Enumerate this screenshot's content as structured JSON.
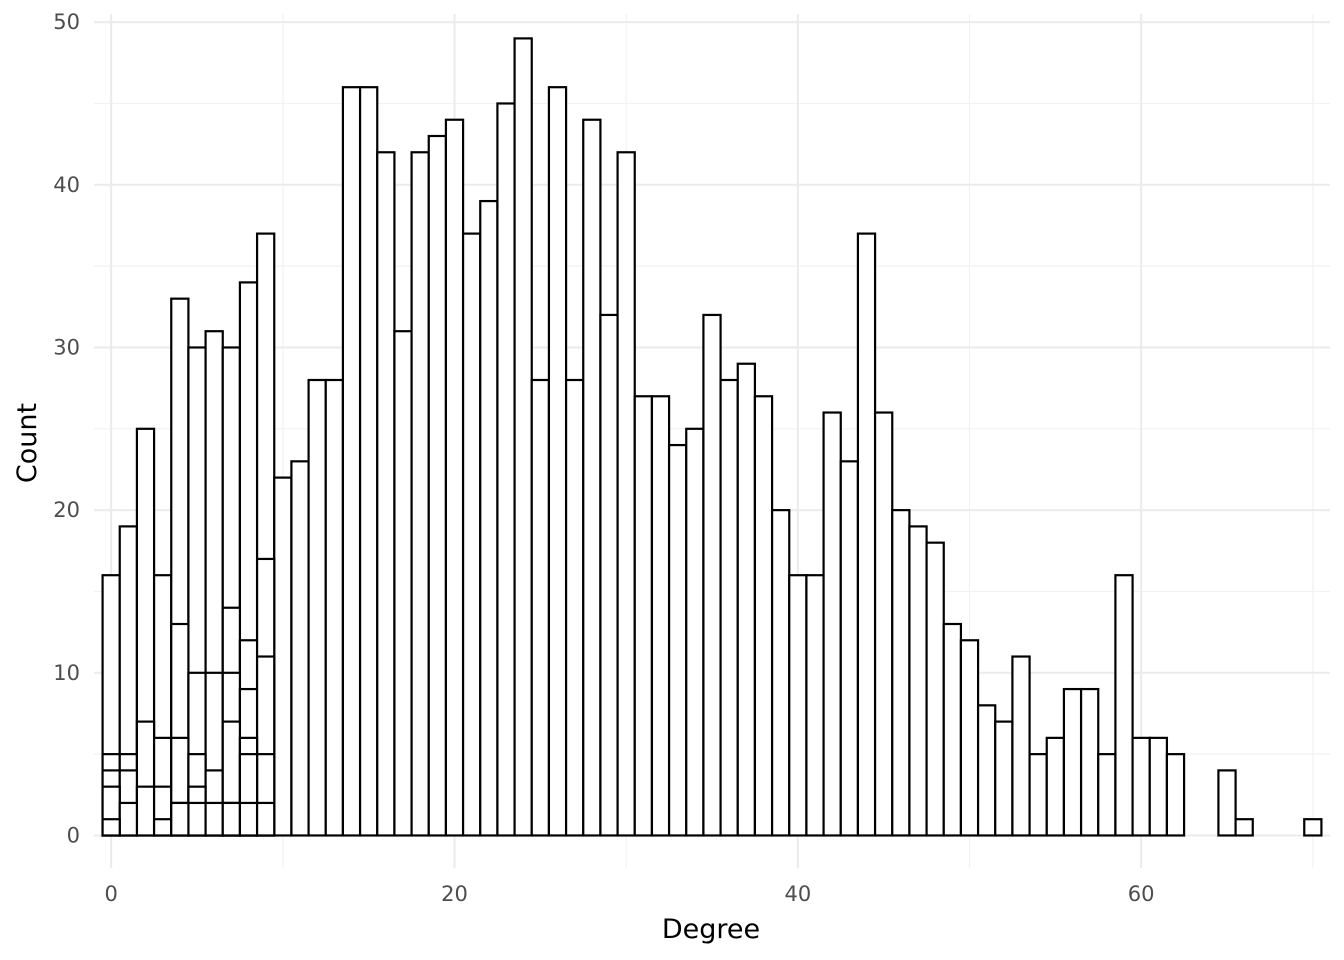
{
  "chart_data": {
    "type": "bar",
    "title": "",
    "xlabel": "Degree",
    "ylabel": "Count",
    "xlim": [
      -1,
      71
    ],
    "ylim": [
      -2,
      50.5
    ],
    "x_ticks": [
      0,
      20,
      40,
      60
    ],
    "y_ticks": [
      0,
      10,
      20,
      30,
      40,
      50
    ],
    "grid": true,
    "legend": "none",
    "bar_fill": "#ffffff",
    "bar_outline": "#000000",
    "bin_width": 1,
    "stacked": true,
    "layers": [
      {
        "bins": [
          0,
          1,
          2,
          3,
          4,
          5,
          6,
          7,
          8,
          9,
          10,
          11,
          12,
          13,
          14,
          15,
          16,
          17,
          18,
          19,
          20,
          21,
          22,
          23,
          24,
          25,
          26,
          27,
          28,
          29,
          30,
          31,
          32,
          33,
          34,
          35,
          36,
          37,
          38,
          39,
          40,
          41,
          42,
          43,
          44,
          45,
          46,
          47,
          48,
          49,
          50,
          51,
          52,
          53,
          54,
          55,
          56,
          57,
          58,
          59,
          60,
          61,
          62,
          65,
          66,
          70
        ],
        "tops": [
          16,
          19,
          25,
          16,
          33,
          30,
          31,
          30,
          34,
          37,
          22,
          23,
          28,
          28,
          46,
          46,
          42,
          31,
          42,
          43,
          44,
          37,
          39,
          45,
          49,
          28,
          46,
          28,
          44,
          32,
          42,
          27,
          27,
          24,
          25,
          32,
          28,
          29,
          27,
          20,
          16,
          16,
          26,
          23,
          37,
          26,
          20,
          19,
          18,
          13,
          12,
          8,
          7,
          11,
          5,
          6,
          9,
          9,
          5,
          16,
          6,
          6,
          5,
          4,
          1,
          1
        ]
      },
      {
        "bins": [
          0,
          1,
          2,
          3,
          4,
          5,
          6,
          7,
          8,
          9
        ],
        "tops": [
          5,
          5,
          7,
          6,
          13,
          10,
          10,
          14,
          12,
          17
        ]
      },
      {
        "bins": [
          0,
          1,
          2,
          3,
          4,
          5,
          6,
          7,
          8,
          9
        ],
        "tops": [
          4,
          4,
          3,
          3,
          6,
          5,
          4,
          10,
          9,
          11
        ]
      },
      {
        "bins": [
          0,
          1,
          2,
          3,
          4,
          5,
          6,
          7,
          8,
          9
        ],
        "tops": [
          3,
          2,
          0,
          1,
          2,
          3,
          1,
          7,
          6,
          5
        ]
      },
      {
        "bins": [
          0,
          5,
          7,
          8
        ],
        "tops": [
          1,
          2,
          2,
          5
        ]
      },
      {
        "bins": [
          4,
          6,
          7,
          8,
          9
        ],
        "tops": [
          2,
          2,
          2,
          2,
          2
        ]
      }
    ]
  }
}
